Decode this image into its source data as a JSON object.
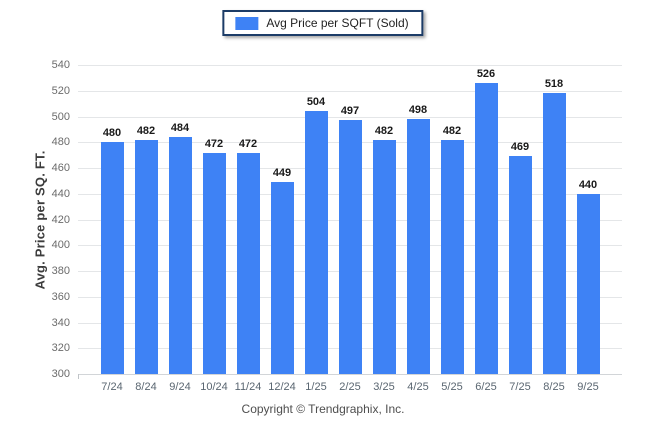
{
  "legend": {
    "label": "Avg Price per SQFT (Sold)",
    "swatch_color": "#3e82f5"
  },
  "footer": {
    "copyright": "Copyright © Trendgraphix, Inc."
  },
  "chart_data": {
    "type": "bar",
    "title": "",
    "xlabel": "",
    "ylabel": "Avg. Price per SQ. FT.",
    "series_name": "Avg Price per SQFT (Sold)",
    "categories": [
      "7/24",
      "8/24",
      "9/24",
      "10/24",
      "11/24",
      "12/24",
      "1/25",
      "2/25",
      "3/25",
      "4/25",
      "5/25",
      "6/25",
      "7/25",
      "8/25",
      "9/25"
    ],
    "values": [
      480,
      482,
      484,
      472,
      472,
      449,
      504,
      497,
      482,
      498,
      482,
      526,
      469,
      518,
      440
    ],
    "ylim": [
      300,
      540
    ],
    "ytick_step": 20,
    "grid": "horizontal",
    "legend_position": "top-center",
    "bar_color": "#3e82f5",
    "value_labels": true
  },
  "colors": {
    "bar": "#3e82f5",
    "legend_border": "#1c3c67",
    "gridline": "#e4e6e8",
    "axis_line": "#d2d5d8",
    "y_tick_label": "#6b6b6b",
    "x_tick_label": "#5a6671",
    "value_label": "#1a1a1a",
    "background_edge": "#dfe9f5"
  }
}
